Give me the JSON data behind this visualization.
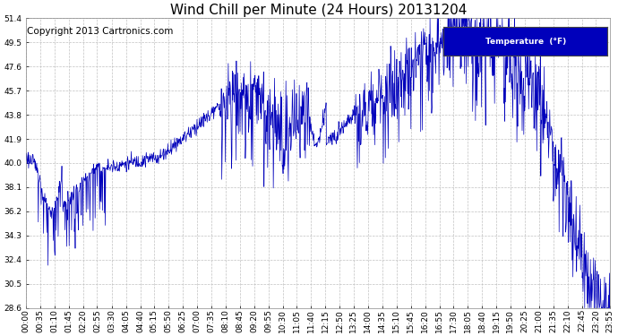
{
  "title": "Wind Chill per Minute (24 Hours) 20131204",
  "copyright_text": "Copyright 2013 Cartronics.com",
  "legend_label": "Temperature  (°F)",
  "line_color": "#0000BB",
  "legend_bg": "#0000BB",
  "legend_text_color": "#FFFFFF",
  "bg_color": "#FFFFFF",
  "plot_bg_color": "#FFFFFF",
  "grid_color": "#BBBBBB",
  "ylim": [
    28.6,
    51.4
  ],
  "yticks": [
    28.6,
    30.5,
    32.4,
    34.3,
    36.2,
    38.1,
    40.0,
    41.9,
    43.8,
    45.7,
    47.6,
    49.5,
    51.4
  ],
  "xtick_labels": [
    "00:00",
    "00:35",
    "01:10",
    "01:45",
    "02:20",
    "02:55",
    "03:30",
    "04:05",
    "04:40",
    "05:15",
    "05:50",
    "06:25",
    "07:00",
    "07:35",
    "08:10",
    "08:45",
    "09:20",
    "09:55",
    "10:30",
    "11:05",
    "11:40",
    "12:15",
    "12:50",
    "13:25",
    "14:00",
    "14:35",
    "15:10",
    "15:45",
    "16:20",
    "16:55",
    "17:30",
    "18:05",
    "18:40",
    "19:15",
    "19:50",
    "20:25",
    "21:00",
    "21:35",
    "22:10",
    "22:45",
    "23:20",
    "23:55"
  ],
  "title_fontsize": 11,
  "tick_fontsize": 6.5,
  "copyright_fontsize": 7.5
}
